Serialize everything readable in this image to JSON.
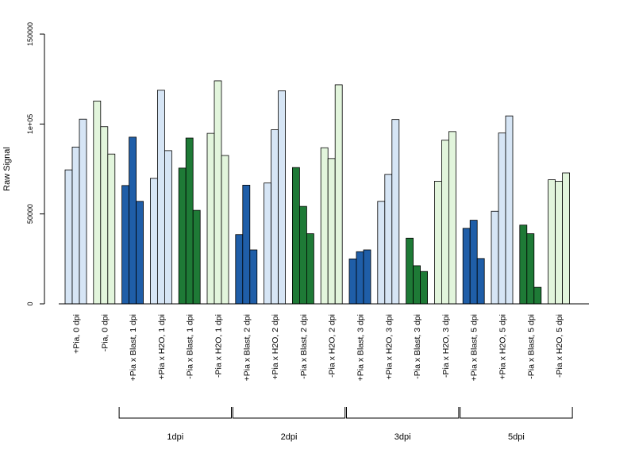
{
  "chart_data": {
    "type": "bar",
    "xlabel": "",
    "ylabel": "Raw Signal",
    "ylim": [
      0,
      150000
    ],
    "y_ticks": [
      0,
      50000,
      100000,
      150000
    ],
    "y_tick_labels": [
      "0",
      "50000",
      "1e+05",
      "150000"
    ],
    "grid": false,
    "categories": [
      "+Pia, 0 dpi",
      "-Pia, 0 dpi",
      "+Pia x Blast, 1 dpi",
      "+Pia x H2O, 1 dpi",
      "-Pia x Blast, 1 dpi",
      "-Pia x H2O, 1 dpi",
      "+Pia x Blast, 2 dpi",
      "+Pia x H2O, 2 dpi",
      "-Pia x Blast, 2 dpi",
      "-Pia x H2O, 2 dpi",
      "+Pia x Blast, 3 dpi",
      "+Pia x H2O, 3 dpi",
      "-Pia x Blast, 3 dpi",
      "-Pia x H2O, 3 dpi",
      "+Pia x Blast, 5 dpi",
      "+Pia x H2O, 5 dpi",
      "-Pia x Blast, 5 dpi",
      "-Pia x H2O, 5 dpi"
    ],
    "category_colors": [
      "#d6e5f5",
      "#e2f5dc",
      "#1f5ea8",
      "#d6e5f5",
      "#1e7a36",
      "#e2f5dc",
      "#1f5ea8",
      "#d6e5f5",
      "#1e7a36",
      "#e2f5dc",
      "#1f5ea8",
      "#d6e5f5",
      "#1e7a36",
      "#e2f5dc",
      "#1f5ea8",
      "#d6e5f5",
      "#1e7a36",
      "#e2f5dc"
    ],
    "replicate_values": [
      [
        74500,
        87200,
        102700
      ],
      [
        112800,
        98500,
        83300
      ],
      [
        65800,
        92700,
        57000
      ],
      [
        69800,
        118800,
        85200
      ],
      [
        75500,
        92200,
        52000
      ],
      [
        94800,
        124000,
        82500
      ],
      [
        38500,
        66000,
        30000
      ],
      [
        67200,
        96800,
        118500
      ],
      [
        75800,
        54200,
        39000
      ],
      [
        86800,
        80800,
        121800
      ],
      [
        25000,
        29000,
        30000
      ],
      [
        57000,
        72000,
        102500
      ],
      [
        36500,
        21200,
        18000
      ],
      [
        68200,
        91000,
        95800
      ],
      [
        42000,
        46500,
        25200
      ],
      [
        51500,
        95000,
        104500
      ],
      [
        43800,
        39000,
        9200
      ],
      [
        69000,
        68200,
        72800
      ]
    ],
    "groups": [
      {
        "label": "1dpi",
        "from": 2,
        "to": 5
      },
      {
        "label": "2dpi",
        "from": 6,
        "to": 9
      },
      {
        "label": "3dpi",
        "from": 10,
        "to": 13
      },
      {
        "label": "5dpi",
        "from": 14,
        "to": 17
      }
    ]
  }
}
